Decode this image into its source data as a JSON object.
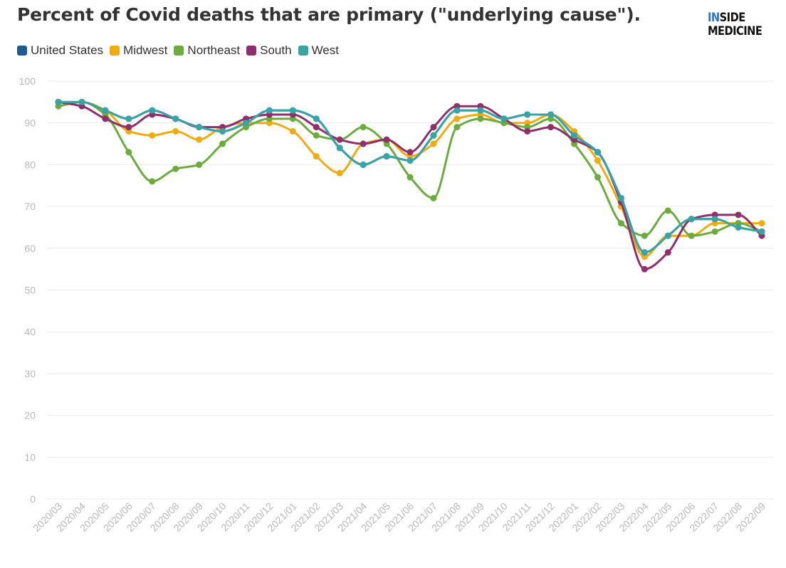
{
  "header": {
    "title": "Percent of Covid deaths that are primary (\"underlying cause\").",
    "logo_line1_highlight": "IN",
    "logo_line1_rest": "SIDE",
    "logo_line2": "MEDICINE"
  },
  "colors": {
    "United States": "#1f5b8e",
    "Midwest": "#f0aa12",
    "Northeast": "#6cac3f",
    "South": "#8f2f6c",
    "West": "#3aa3a6",
    "grid": "#e9e9e9",
    "tick_label": "#b9b9b9"
  },
  "chart_data": {
    "type": "line",
    "title": "Percent of Covid deaths that are primary (\"underlying cause\").",
    "xlabel": "",
    "ylabel": "",
    "ylim": [
      0,
      100
    ],
    "yticks": [
      0,
      10,
      20,
      30,
      40,
      50,
      60,
      70,
      80,
      90,
      100
    ],
    "grid": true,
    "legend_position": "top-left",
    "categories": [
      "2020/03",
      "2020/04",
      "2020/05",
      "2020/06",
      "2020/07",
      "2020/08",
      "2020/09",
      "2020/10",
      "2020/11",
      "2020/12",
      "2021/01",
      "2021/02",
      "2021/03",
      "2021/04",
      "2021/05",
      "2021/06",
      "2021/07",
      "2021/08",
      "2021/09",
      "2021/10",
      "2021/11",
      "2021/12",
      "2022/01",
      "2022/02",
      "2022/03",
      "2022/04",
      "2022/05",
      "2022/06",
      "2022/07",
      "2022/08",
      "2022/09"
    ],
    "series": [
      {
        "name": "United States",
        "values": [
          95,
          95,
          93,
          91,
          93,
          91,
          89,
          88,
          90,
          93,
          93,
          91,
          84,
          80,
          82,
          81,
          87,
          93,
          93,
          91,
          92,
          92,
          87,
          83,
          72,
          59,
          63,
          67,
          67,
          65,
          64
        ]
      },
      {
        "name": "Midwest",
        "values": [
          95,
          95,
          93,
          88,
          87,
          88,
          86,
          89,
          90,
          90,
          88,
          82,
          78,
          85,
          86,
          82,
          85,
          91,
          92,
          90,
          90,
          92,
          88,
          81,
          70,
          58,
          63,
          63,
          66,
          66,
          66
        ]
      },
      {
        "name": "Northeast",
        "values": [
          94,
          95,
          92,
          83,
          76,
          79,
          80,
          85,
          89,
          91,
          91,
          87,
          86,
          89,
          85,
          77,
          72,
          89,
          91,
          90,
          89,
          91,
          85,
          77,
          66,
          63,
          69,
          63,
          64,
          66,
          64
        ]
      },
      {
        "name": "South",
        "values": [
          95,
          94,
          91,
          89,
          92,
          91,
          89,
          89,
          91,
          92,
          92,
          89,
          86,
          85,
          86,
          83,
          89,
          94,
          94,
          91,
          88,
          89,
          86,
          83,
          71,
          55,
          59,
          67,
          68,
          68,
          63
        ]
      },
      {
        "name": "West",
        "values": [
          95,
          95,
          93,
          91,
          93,
          91,
          89,
          88,
          90,
          93,
          93,
          91,
          84,
          80,
          82,
          81,
          87,
          93,
          93,
          91,
          92,
          92,
          87,
          83,
          72,
          59,
          63,
          67,
          67,
          65,
          64
        ]
      }
    ]
  }
}
